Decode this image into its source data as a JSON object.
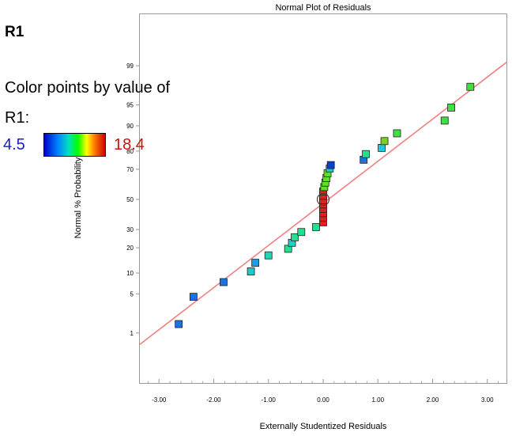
{
  "legend": {
    "title": "R1",
    "line1": "Color points by value of",
    "line2": "R1:",
    "min_label": "4.5",
    "max_label": "18.4"
  },
  "colors": {
    "fit_line": "#f08080",
    "frame": "#999999"
  },
  "chart_data": {
    "type": "scatter",
    "title": "Normal Plot of Residuals",
    "xlabel": "Externally Studentized Residuals",
    "ylabel": "Normal % Probability",
    "xlim": [
      -3.35,
      3.35
    ],
    "x_ticks": [
      -3,
      -2,
      -1,
      0,
      1,
      2,
      3
    ],
    "x_tick_labels": [
      "-3.00",
      "-2.00",
      "-1.00",
      "0.00",
      "1.00",
      "2.00",
      "3.00"
    ],
    "y_scale": "normal-probability",
    "y_ticks": [
      1,
      5,
      10,
      20,
      30,
      50,
      70,
      80,
      90,
      95,
      99
    ],
    "y_tick_labels": [
      "1",
      "5",
      "10",
      "20",
      "30",
      "50",
      "70",
      "80",
      "90",
      "95",
      "99"
    ],
    "reference_line": {
      "x": [
        -3.35,
        3.35
      ],
      "y": [
        0.58,
        99.15
      ]
    },
    "marker": "square",
    "color_scale": {
      "variable": "R1",
      "min": 4.5,
      "max": 18.4
    },
    "points": [
      {
        "x": -2.64,
        "y": 1.5,
        "color": "#1a73e0"
      },
      {
        "x": -2.37,
        "y": 4.5,
        "color": "#1a73e0"
      },
      {
        "x": -1.82,
        "y": 7.5,
        "color": "#1a73e0"
      },
      {
        "x": -1.32,
        "y": 10.5,
        "color": "#20c8c8"
      },
      {
        "x": -1.24,
        "y": 13.5,
        "color": "#1a9fe6"
      },
      {
        "x": -1.0,
        "y": 16.5,
        "color": "#20d8b8"
      },
      {
        "x": -0.64,
        "y": 19.5,
        "color": "#22e090"
      },
      {
        "x": -0.57,
        "y": 22.5,
        "color": "#20d0c8"
      },
      {
        "x": -0.52,
        "y": 25.5,
        "color": "#22e090"
      },
      {
        "x": -0.4,
        "y": 28.5,
        "color": "#22e090"
      },
      {
        "x": -0.13,
        "y": 31.5,
        "color": "#22e090"
      },
      {
        "x": 0.0,
        "y": 34.5,
        "color": "#e02020"
      },
      {
        "x": 0.0,
        "y": 37.5,
        "color": "#e02020"
      },
      {
        "x": 0.0,
        "y": 40.5,
        "color": "#e02020"
      },
      {
        "x": 0.0,
        "y": 43.5,
        "color": "#e02020"
      },
      {
        "x": 0.0,
        "y": 46.5,
        "color": "#e02020"
      },
      {
        "x": 0.0,
        "y": 49.5,
        "color": "#e02020"
      },
      {
        "x": 0.0,
        "y": 52.5,
        "color": "#e02020"
      },
      {
        "x": 0.0,
        "y": 55.5,
        "color": "#e02020"
      },
      {
        "x": 0.02,
        "y": 58.5,
        "color": "#60e020"
      },
      {
        "x": 0.04,
        "y": 61.5,
        "color": "#60e020"
      },
      {
        "x": 0.06,
        "y": 64.5,
        "color": "#60e020"
      },
      {
        "x": 0.08,
        "y": 67.5,
        "color": "#60e020"
      },
      {
        "x": 0.12,
        "y": 70.5,
        "color": "#20c8c8"
      },
      {
        "x": 0.14,
        "y": 72.5,
        "color": "#0a3fd0"
      },
      {
        "x": 0.74,
        "y": 75.5,
        "color": "#1a73e0"
      },
      {
        "x": 0.78,
        "y": 78.5,
        "color": "#22e090"
      },
      {
        "x": 1.07,
        "y": 81.5,
        "color": "#20c8e0"
      },
      {
        "x": 1.12,
        "y": 84.5,
        "color": "#7ad020"
      },
      {
        "x": 1.35,
        "y": 87.5,
        "color": "#40e040"
      },
      {
        "x": 2.22,
        "y": 91.5,
        "color": "#40e040"
      },
      {
        "x": 2.34,
        "y": 94.5,
        "color": "#40e040"
      },
      {
        "x": 2.69,
        "y": 97.5,
        "color": "#40e040"
      }
    ],
    "highlight_point": {
      "x": 0.0,
      "y": 50
    }
  }
}
